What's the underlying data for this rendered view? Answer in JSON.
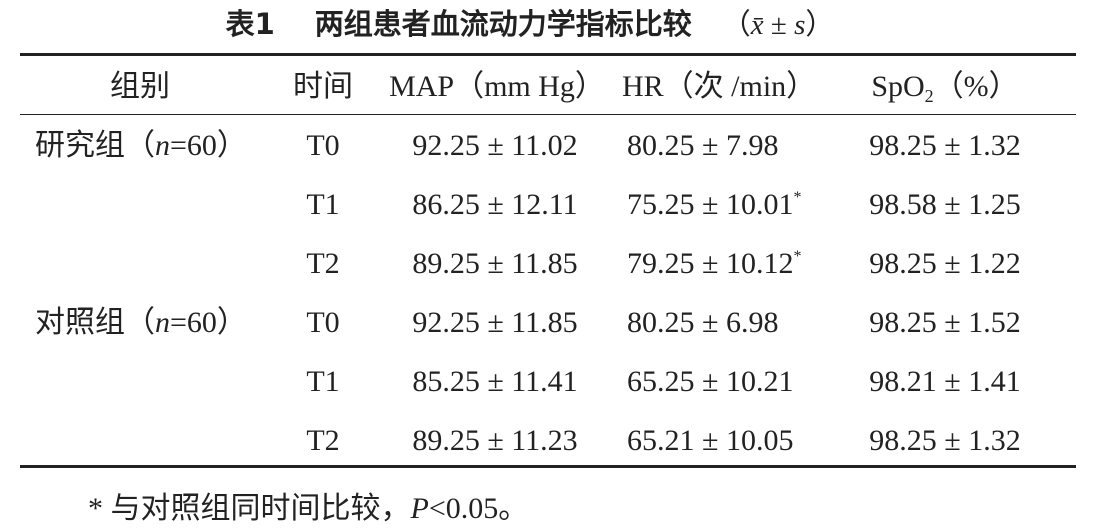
{
  "title": {
    "label": "表1",
    "text": "两组患者血流动力学指标比较",
    "stat": [
      "（",
      "x̄",
      " ± ",
      "s",
      "）"
    ]
  },
  "table": {
    "header": [
      "组别",
      "时间",
      "MAP（mm Hg）",
      "HR（次 /min）",
      {
        "text": "SpO",
        "sub": "2",
        "suffix": "（%）"
      }
    ],
    "groups": [
      {
        "label": [
          "研究组（",
          "n",
          "=60）"
        ],
        "rows": [
          {
            "time": "T0",
            "map": "92.25 ± 11.02",
            "hr": "80.25 ± 7.98",
            "spo2": "98.25 ± 1.32"
          },
          {
            "time": "T1",
            "map": "86.25 ± 12.11",
            "hr": "75.25 ± 10.01",
            "hr_mark": "*",
            "spo2": "98.58 ± 1.25"
          },
          {
            "time": "T2",
            "map": "89.25 ± 11.85",
            "hr": "79.25 ± 10.12",
            "hr_mark": "*",
            "spo2": "98.25 ± 1.22"
          }
        ]
      },
      {
        "label": [
          "对照组（",
          "n",
          "=60）"
        ],
        "rows": [
          {
            "time": "T0",
            "map": "92.25 ± 11.85",
            "hr": "80.25 ± 6.98",
            "spo2": "98.25 ± 1.52"
          },
          {
            "time": "T1",
            "map": "85.25 ± 11.41",
            "hr": "65.25 ± 10.21",
            "spo2": "98.21 ± 1.41"
          },
          {
            "time": "T2",
            "map": "89.25 ± 11.23",
            "hr": "65.21 ± 10.05",
            "spo2": "98.25 ± 1.32"
          }
        ]
      }
    ]
  },
  "footnote": {
    "mark": "*",
    "text": " 与对照组同时间比较，",
    "p": "P",
    "rest": "<0.05。"
  }
}
